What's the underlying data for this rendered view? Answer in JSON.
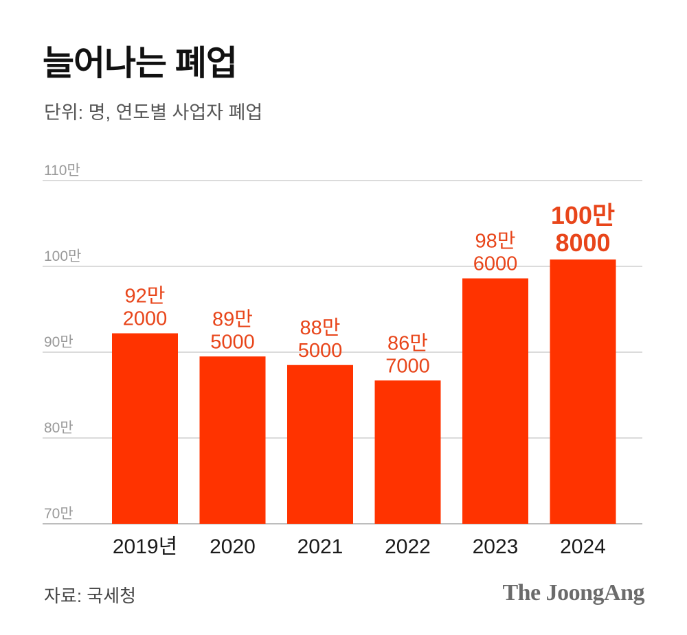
{
  "header": {
    "title": "늘어나는 폐업",
    "subtitle": "단위: 명, 연도별 사업자 폐업"
  },
  "footer": {
    "source": "자료: 국세청",
    "brand": "The JoongAng"
  },
  "colors": {
    "bar": "#ff3300",
    "label": "#e8451a",
    "grid": "#cfcfcf",
    "axis_text": "#999999"
  },
  "chart_data": {
    "type": "bar",
    "title": "늘어나는 폐업",
    "subtitle": "단위: 명, 연도별 사업자 폐업",
    "xlabel": "",
    "ylabel": "",
    "categories": [
      "2019년",
      "2020",
      "2021",
      "2022",
      "2023",
      "2024"
    ],
    "values": [
      922000,
      895000,
      885000,
      867000,
      986000,
      1008000
    ],
    "data_labels": [
      [
        "92만",
        "2000"
      ],
      [
        "89만",
        "5000"
      ],
      [
        "88만",
        "5000"
      ],
      [
        "86만",
        "7000"
      ],
      [
        "98만",
        "6000"
      ],
      [
        "100만",
        "8000"
      ]
    ],
    "highlight_index": 5,
    "ylim": [
      700000,
      1100000
    ],
    "yticks": [
      700000,
      800000,
      900000,
      1000000,
      1100000
    ],
    "ytick_labels": [
      "70만",
      "80만",
      "90만",
      "100만",
      "110만"
    ],
    "grid": true,
    "legend": "none"
  }
}
